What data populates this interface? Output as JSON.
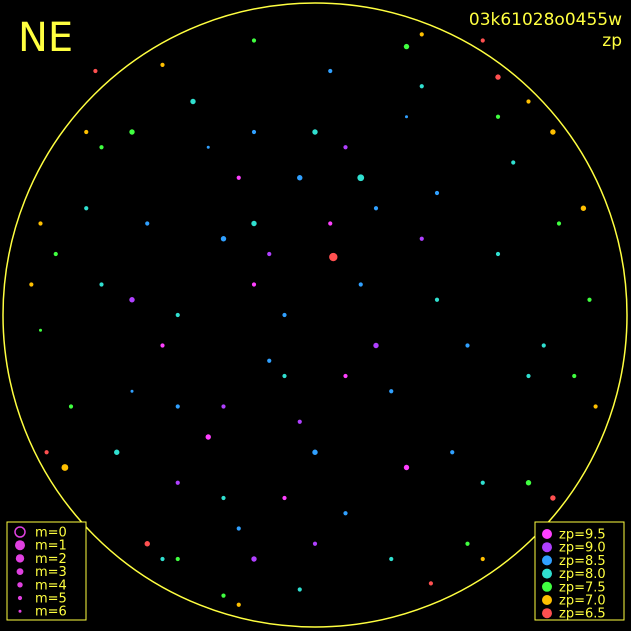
{
  "chart_data": {
    "type": "scatter",
    "title": "NE",
    "subtitle": "03k61028o0455w",
    "label": "zp",
    "xlim": [
      -1,
      1
    ],
    "ylim": [
      -1,
      1
    ],
    "magnitude_legend": [
      "m=0",
      "m=1",
      "m=2",
      "m=3",
      "m=4",
      "m=5",
      "m=6"
    ],
    "series": [
      {
        "name": "zp=9.5",
        "color": "#ff40ff",
        "x": [
          -0.2,
          0.1,
          -0.35,
          0.05,
          -0.5,
          0.3,
          -0.1,
          -0.25
        ],
        "y": [
          0.1,
          -0.2,
          -0.4,
          0.3,
          -0.1,
          -0.5,
          -0.6,
          0.45
        ],
        "m": [
          5,
          5,
          4,
          5,
          5,
          4,
          5,
          5
        ]
      },
      {
        "name": "zp=9.0",
        "color": "#b040ff",
        "x": [
          -0.3,
          -0.15,
          0.2,
          -0.45,
          0.0,
          -0.6,
          0.35,
          -0.2,
          0.1,
          -0.05
        ],
        "y": [
          -0.3,
          0.2,
          -0.1,
          -0.55,
          -0.75,
          0.05,
          0.25,
          -0.8,
          0.55,
          -0.35
        ],
        "m": [
          5,
          5,
          4,
          5,
          5,
          4,
          5,
          4,
          5,
          5
        ]
      },
      {
        "name": "zp=8.5",
        "color": "#30a0ff",
        "x": [
          -0.1,
          0.15,
          -0.3,
          0.25,
          -0.45,
          0.4,
          0.0,
          -0.2,
          0.3,
          -0.55,
          0.1,
          -0.05,
          0.5,
          -0.35,
          0.2,
          -0.15,
          0.45,
          -0.6,
          0.05,
          -0.25
        ],
        "y": [
          0.0,
          0.1,
          0.25,
          -0.25,
          -0.3,
          0.4,
          -0.45,
          0.6,
          0.65,
          0.3,
          -0.65,
          0.45,
          -0.1,
          0.55,
          0.35,
          -0.15,
          -0.45,
          -0.25,
          0.8,
          -0.7
        ],
        "m": [
          5,
          5,
          4,
          5,
          5,
          5,
          4,
          5,
          6,
          5,
          5,
          4,
          5,
          6,
          5,
          5,
          5,
          6,
          5,
          5
        ]
      },
      {
        "name": "zp=8.0",
        "color": "#30e0d0",
        "x": [
          -0.7,
          0.6,
          -0.4,
          0.35,
          -0.1,
          0.7,
          -0.65,
          0.15,
          -0.3,
          0.55,
          -0.75,
          0.0,
          0.25,
          -0.5,
          0.65,
          -0.2,
          0.4,
          -0.05,
          0.75,
          -0.45
        ],
        "y": [
          0.1,
          0.2,
          0.7,
          0.75,
          -0.2,
          -0.2,
          -0.45,
          0.45,
          -0.6,
          -0.55,
          0.35,
          0.6,
          -0.8,
          -0.8,
          0.5,
          0.3,
          0.05,
          -0.9,
          -0.1,
          0.0
        ],
        "m": [
          5,
          5,
          4,
          5,
          5,
          5,
          4,
          3,
          5,
          5,
          5,
          4,
          5,
          5,
          5,
          4,
          5,
          5,
          5,
          5
        ]
      },
      {
        "name": "zp=7.5",
        "color": "#40ff40",
        "x": [
          -0.85,
          0.8,
          -0.6,
          0.6,
          -0.2,
          0.3,
          -0.8,
          0.85,
          -0.45,
          0.5,
          -0.9,
          0.9,
          -0.7,
          0.7,
          -0.3
        ],
        "y": [
          0.2,
          0.3,
          0.6,
          0.65,
          0.9,
          0.88,
          -0.3,
          -0.2,
          -0.8,
          -0.75,
          -0.05,
          0.05,
          0.55,
          -0.55,
          -0.92
        ],
        "m": [
          5,
          5,
          4,
          5,
          5,
          4,
          5,
          5,
          5,
          5,
          6,
          5,
          5,
          4,
          5
        ]
      },
      {
        "name": "zp=7.0",
        "color": "#ffc000",
        "x": [
          -0.9,
          0.88,
          -0.75,
          0.78,
          -0.5,
          0.55,
          -0.82,
          0.92,
          0.35,
          -0.25,
          -0.93,
          0.7
        ],
        "y": [
          0.3,
          0.35,
          0.6,
          0.6,
          0.82,
          -0.8,
          -0.5,
          -0.3,
          0.92,
          -0.95,
          0.1,
          0.7
        ],
        "m": [
          5,
          4,
          5,
          4,
          5,
          5,
          3,
          5,
          5,
          5,
          5,
          5
        ]
      },
      {
        "name": "zp=6.5",
        "color": "#ff5050",
        "x": [
          0.06,
          -0.72,
          0.6,
          0.78,
          -0.55,
          0.55,
          -0.88,
          0.38
        ],
        "y": [
          0.19,
          0.8,
          0.78,
          -0.6,
          -0.75,
          0.9,
          -0.45,
          -0.88
        ],
        "m": [
          2,
          5,
          4,
          4,
          4,
          5,
          5,
          5
        ]
      }
    ]
  }
}
